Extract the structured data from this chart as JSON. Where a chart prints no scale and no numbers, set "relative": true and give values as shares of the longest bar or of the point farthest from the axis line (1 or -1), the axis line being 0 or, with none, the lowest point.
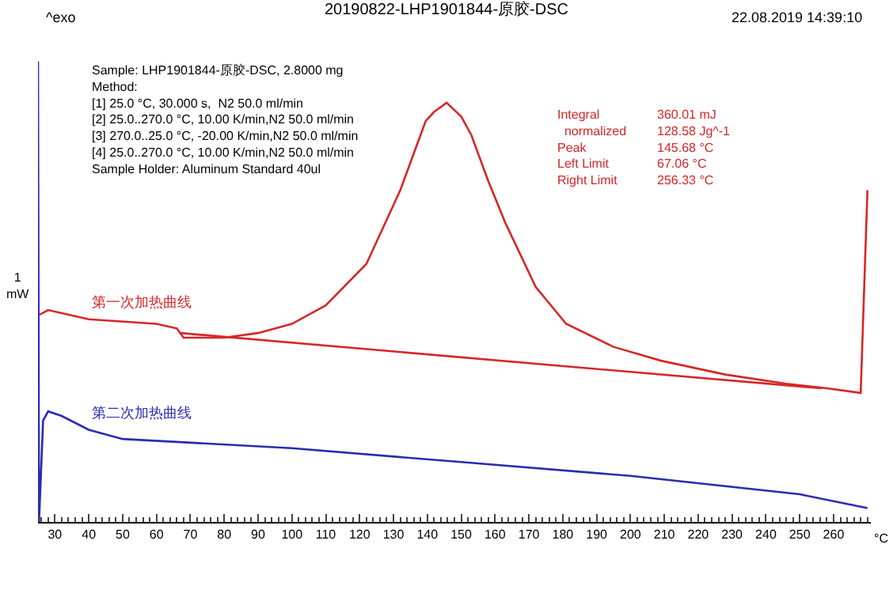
{
  "chart_data": {
    "type": "line",
    "title": "20190822-LHP1901844-原胶-DSC",
    "xlabel": "°C",
    "ylabel": "1 mW",
    "relative": true,
    "xlim": [
      25,
      271
    ],
    "xticks": [
      30,
      40,
      50,
      60,
      70,
      80,
      90,
      100,
      110,
      120,
      130,
      140,
      150,
      160,
      170,
      180,
      190,
      200,
      210,
      220,
      230,
      240,
      250,
      260
    ],
    "tick_labels": "x",
    "legend": false,
    "marker": "none",
    "line_style": "solid",
    "annotations": [
      "Sample: LHP1901844-原胶-DSC, 2.8000 mg\nMethod:\n[1] 25.0 °C, 30.000 s,  N2 50.0 ml/min\n[2] 25.0..270.0 °C, 10.00 K/min,N2 50.0 ml/min\n[3] 270.0..25.0 °C, -20.00 K/min,N2 50.0 ml/min\n[4] 25.0..270.0 °C, 10.00 K/min,N2 50.0 ml/min\nSample Holder: Aluminum Standard 40ul",
      "Integral\n  normalized\nPeak\nLeft Limit\nRight Limit",
      "360.01 mJ\n128.58 Jg^-1\n145.68 °C\n67.06 °C\n256.33 °C",
      "^exo",
      "22.08.2019 14:39:10"
    ],
    "series": [
      {
        "name": "第一次加热曲线",
        "color": "#d62728",
        "x": [
          25.5,
          28,
          40,
          60,
          66,
          68,
          80,
          90,
          100,
          110,
          122,
          132,
          136,
          139.5,
          142,
          145.7,
          150,
          153,
          158,
          163,
          172,
          181,
          195,
          209,
          228,
          246,
          258,
          268,
          270
        ],
        "values": [
          0.45,
          0.46,
          0.44,
          0.43,
          0.42,
          0.4,
          0.4,
          0.41,
          0.43,
          0.47,
          0.56,
          0.72,
          0.8,
          0.87,
          0.89,
          0.91,
          0.88,
          0.84,
          0.74,
          0.65,
          0.51,
          0.43,
          0.38,
          0.35,
          0.32,
          0.3,
          0.29,
          0.28,
          0.72
        ]
      },
      {
        "color": "#d62728",
        "x": [
          67.06,
          256.33
        ],
        "values": [
          0.41,
          0.29
        ]
      },
      {
        "name": "第二次加热曲线",
        "color": "#2b2bb0",
        "x": [
          25.0,
          25.3,
          26.5,
          28,
          32,
          40,
          50,
          100,
          150,
          200,
          250,
          270
        ],
        "values": [
          1.0,
          0.0,
          0.22,
          0.24,
          0.23,
          0.2,
          0.18,
          0.16,
          0.13,
          0.1,
          0.06,
          0.03
        ]
      }
    ]
  }
}
